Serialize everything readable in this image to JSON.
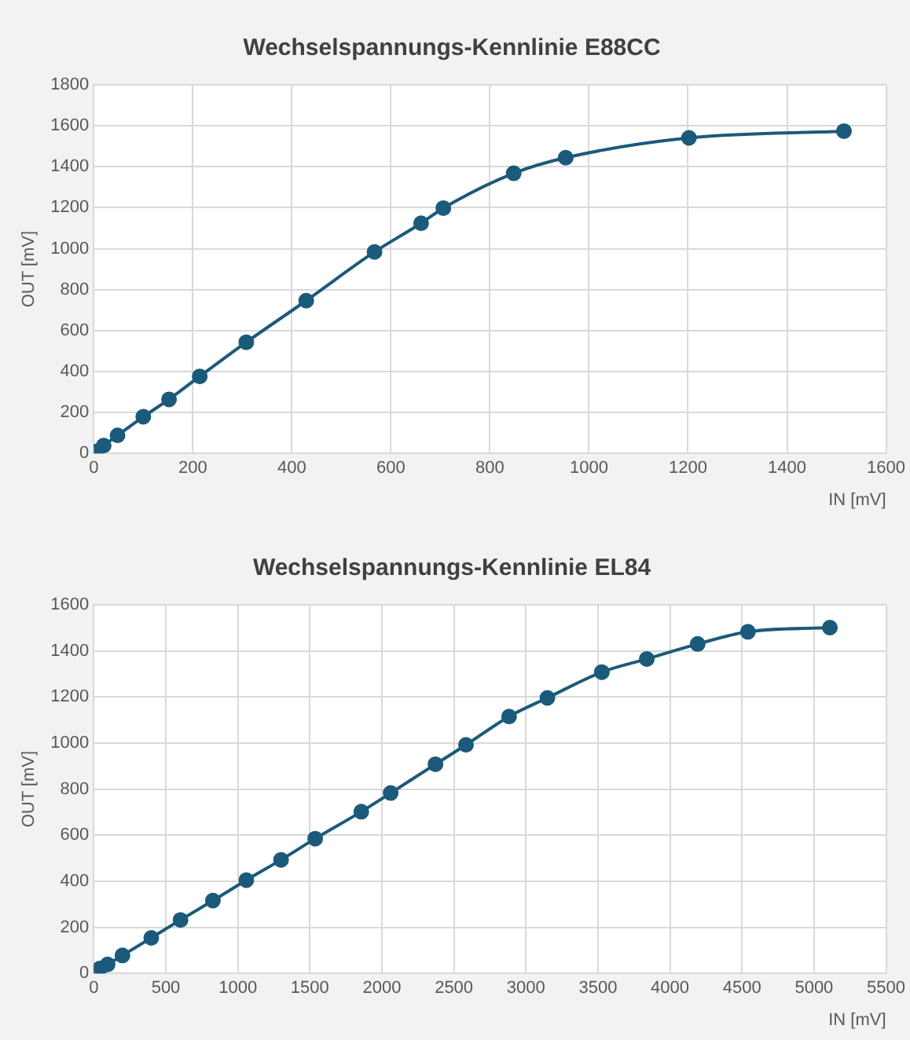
{
  "chart_data": [
    {
      "type": "line",
      "title": "Wechselspannungs-Kennlinie E88CC",
      "xlabel": "IN [mV]",
      "ylabel": "OUT [mV]",
      "x": [
        5,
        20,
        48,
        100,
        152,
        214,
        308,
        429,
        567,
        661,
        706,
        848,
        953,
        1202,
        1515
      ],
      "series": [
        {
          "color": "#1b5a7a",
          "values": [
            9,
            38,
            88,
            179,
            264,
            376,
            543,
            746,
            984,
            1124,
            1198,
            1368,
            1444,
            1541,
            1574
          ]
        }
      ],
      "xlim": [
        0,
        1600
      ],
      "xticks": [
        0,
        200,
        400,
        600,
        800,
        1000,
        1200,
        1400,
        1600
      ],
      "ylim": [
        0,
        1800
      ],
      "yticks": [
        0,
        200,
        400,
        600,
        800,
        1000,
        1200,
        1400,
        1600,
        1800
      ],
      "grid": true,
      "legend": false,
      "marker": "circle",
      "line_style": "solid"
    },
    {
      "type": "line",
      "title": "Wechselspannungs-Kennlinie EL84",
      "xlabel": "IN [mV]",
      "ylabel": "OUT [mV]",
      "x": [
        42,
        96,
        199,
        399,
        602,
        827,
        1059,
        1300,
        1537,
        1857,
        2061,
        2372,
        2584,
        2883,
        3149,
        3527,
        3839,
        4192,
        4541,
        5110
      ],
      "series": [
        {
          "color": "#1b5a7a",
          "values": [
            21,
            39,
            78,
            154,
            232,
            316,
            405,
            493,
            585,
            702,
            783,
            908,
            992,
            1115,
            1196,
            1308,
            1365,
            1430,
            1483,
            1501
          ]
        }
      ],
      "xlim": [
        0,
        5500
      ],
      "xticks": [
        0,
        500,
        1000,
        1500,
        2000,
        2500,
        3000,
        3500,
        4000,
        4500,
        5000,
        5500
      ],
      "ylim": [
        0,
        1600
      ],
      "yticks": [
        0,
        200,
        400,
        600,
        800,
        1000,
        1200,
        1400,
        1600
      ],
      "grid": true,
      "legend": false,
      "marker": "circle",
      "line_style": "solid"
    }
  ]
}
